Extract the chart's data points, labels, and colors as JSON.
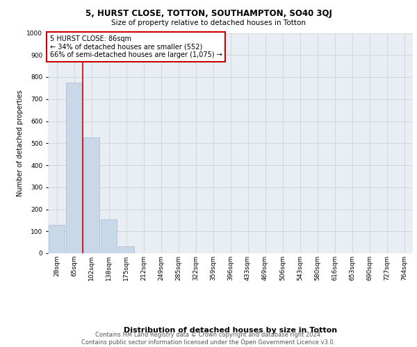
{
  "title1": "5, HURST CLOSE, TOTTON, SOUTHAMPTON, SO40 3QJ",
  "title2": "Size of property relative to detached houses in Totton",
  "xlabel": "Distribution of detached houses by size in Totton",
  "ylabel": "Number of detached properties",
  "footer": "Contains HM Land Registry data © Crown copyright and database right 2024.\nContains public sector information licensed under the Open Government Licence v3.0.",
  "bar_labels": [
    "28sqm",
    "65sqm",
    "102sqm",
    "138sqm",
    "175sqm",
    "212sqm",
    "249sqm",
    "285sqm",
    "322sqm",
    "359sqm",
    "396sqm",
    "433sqm",
    "469sqm",
    "506sqm",
    "543sqm",
    "580sqm",
    "616sqm",
    "653sqm",
    "690sqm",
    "727sqm",
    "764sqm"
  ],
  "bar_values": [
    130,
    775,
    525,
    155,
    30,
    0,
    0,
    0,
    0,
    0,
    0,
    0,
    0,
    0,
    0,
    0,
    0,
    0,
    0,
    0,
    0
  ],
  "bar_color": "#c8d8e8",
  "bar_edge_color": "#aabbcc",
  "grid_color": "#cccccc",
  "vline_x": 1.5,
  "vline_color": "#cc0000",
  "annotation_text": "5 HURST CLOSE: 86sqm\n← 34% of detached houses are smaller (552)\n66% of semi-detached houses are larger (1,075) →",
  "annotation_box_color": "#ffffff",
  "annotation_box_edge": "#cc0000",
  "ylim": [
    0,
    1000
  ],
  "yticks": [
    0,
    100,
    200,
    300,
    400,
    500,
    600,
    700,
    800,
    900,
    1000
  ],
  "bg_color": "#e8eef4",
  "title1_fontsize": 8.5,
  "title2_fontsize": 7.5,
  "ylabel_fontsize": 7.0,
  "xlabel_fontsize": 8.0,
  "tick_fontsize": 6.5,
  "ann_fontsize": 7.0,
  "footer_fontsize": 6.0
}
